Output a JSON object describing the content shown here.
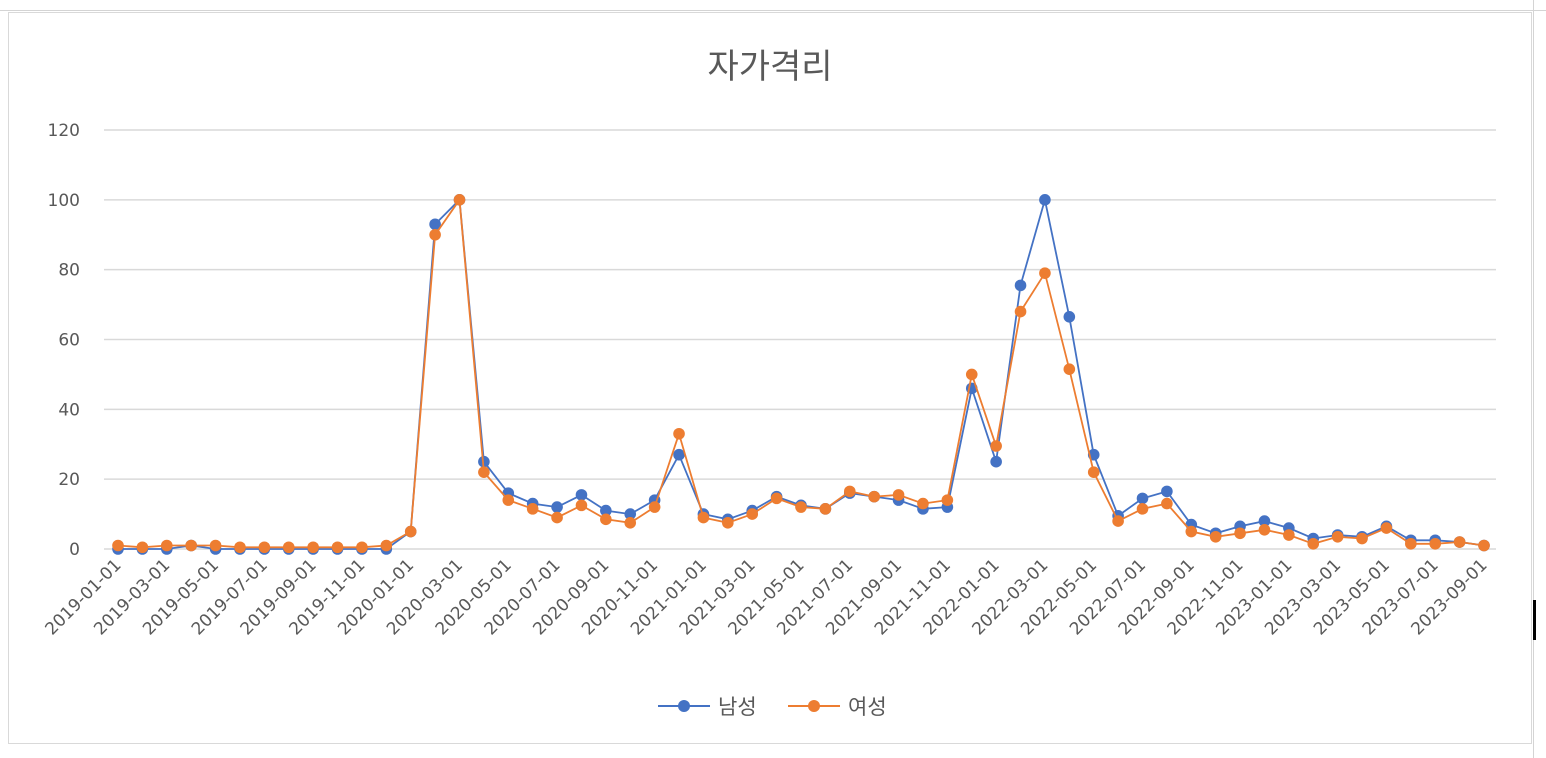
{
  "chart_data": {
    "type": "line",
    "title": "자가격리",
    "xlabel": "",
    "ylabel": "",
    "ylim": [
      0,
      120
    ],
    "yticks": [
      0,
      20,
      40,
      60,
      80,
      100,
      120
    ],
    "grid": true,
    "legend_position": "bottom",
    "x": [
      "2019-01-01",
      "2019-02-01",
      "2019-03-01",
      "2019-04-01",
      "2019-05-01",
      "2019-06-01",
      "2019-07-01",
      "2019-08-01",
      "2019-09-01",
      "2019-10-01",
      "2019-11-01",
      "2019-12-01",
      "2020-01-01",
      "2020-02-01",
      "2020-03-01",
      "2020-04-01",
      "2020-05-01",
      "2020-06-01",
      "2020-07-01",
      "2020-08-01",
      "2020-09-01",
      "2020-10-01",
      "2020-11-01",
      "2020-12-01",
      "2021-01-01",
      "2021-02-01",
      "2021-03-01",
      "2021-04-01",
      "2021-05-01",
      "2021-06-01",
      "2021-07-01",
      "2021-08-01",
      "2021-09-01",
      "2021-10-01",
      "2021-11-01",
      "2021-12-01",
      "2022-01-01",
      "2022-02-01",
      "2022-03-01",
      "2022-04-01",
      "2022-05-01",
      "2022-06-01",
      "2022-07-01",
      "2022-08-01",
      "2022-09-01",
      "2022-10-01",
      "2022-11-01",
      "2022-12-01",
      "2023-01-01",
      "2023-02-01",
      "2023-03-01",
      "2023-04-01",
      "2023-05-01",
      "2023-06-01",
      "2023-07-01",
      "2023-08-01",
      "2023-09-01"
    ],
    "x_tick_labels": [
      "2019-01-01",
      "2019-03-01",
      "2019-05-01",
      "2019-07-01",
      "2019-09-01",
      "2019-11-01",
      "2020-01-01",
      "2020-03-01",
      "2020-05-01",
      "2020-07-01",
      "2020-09-01",
      "2020-11-01",
      "2021-01-01",
      "2021-03-01",
      "2021-05-01",
      "2021-07-01",
      "2021-09-01",
      "2021-11-01",
      "2022-01-01",
      "2022-03-01",
      "2022-05-01",
      "2022-07-01",
      "2022-09-01",
      "2022-11-01",
      "2023-01-01",
      "2023-03-01",
      "2023-05-01",
      "2023-07-01",
      "2023-09-01"
    ],
    "series": [
      {
        "name": "남성",
        "color": "#4472c4",
        "values": [
          0,
          0,
          0,
          1,
          0,
          0,
          0,
          0,
          0,
          0,
          0,
          0,
          5,
          93,
          100,
          25,
          16,
          13,
          12,
          15.5,
          11,
          10,
          14,
          27,
          10,
          8.5,
          11,
          15,
          12.5,
          11.5,
          16,
          15,
          14,
          11.5,
          12,
          46,
          25,
          75.5,
          100,
          66.5,
          27,
          9.5,
          14.5,
          16.5,
          7,
          4.5,
          6.5,
          8,
          6,
          3,
          4,
          3.5,
          6.5,
          2.5,
          2.5,
          2,
          1
        ]
      },
      {
        "name": "여성",
        "color": "#ed7d31",
        "values": [
          1,
          0.5,
          1,
          1,
          1,
          0.5,
          0.5,
          0.5,
          0.5,
          0.5,
          0.5,
          1,
          5,
          90,
          100,
          22,
          14,
          11.5,
          9,
          12.5,
          8.5,
          7.5,
          12,
          33,
          9,
          7.5,
          10,
          14.5,
          12,
          11.5,
          16.5,
          15,
          15.5,
          13,
          14,
          50,
          29.5,
          68,
          79,
          51.5,
          22,
          8,
          11.5,
          13,
          5,
          3.5,
          4.5,
          5.5,
          4,
          1.5,
          3.5,
          3,
          6,
          1.5,
          1.5,
          2,
          1
        ]
      }
    ]
  }
}
